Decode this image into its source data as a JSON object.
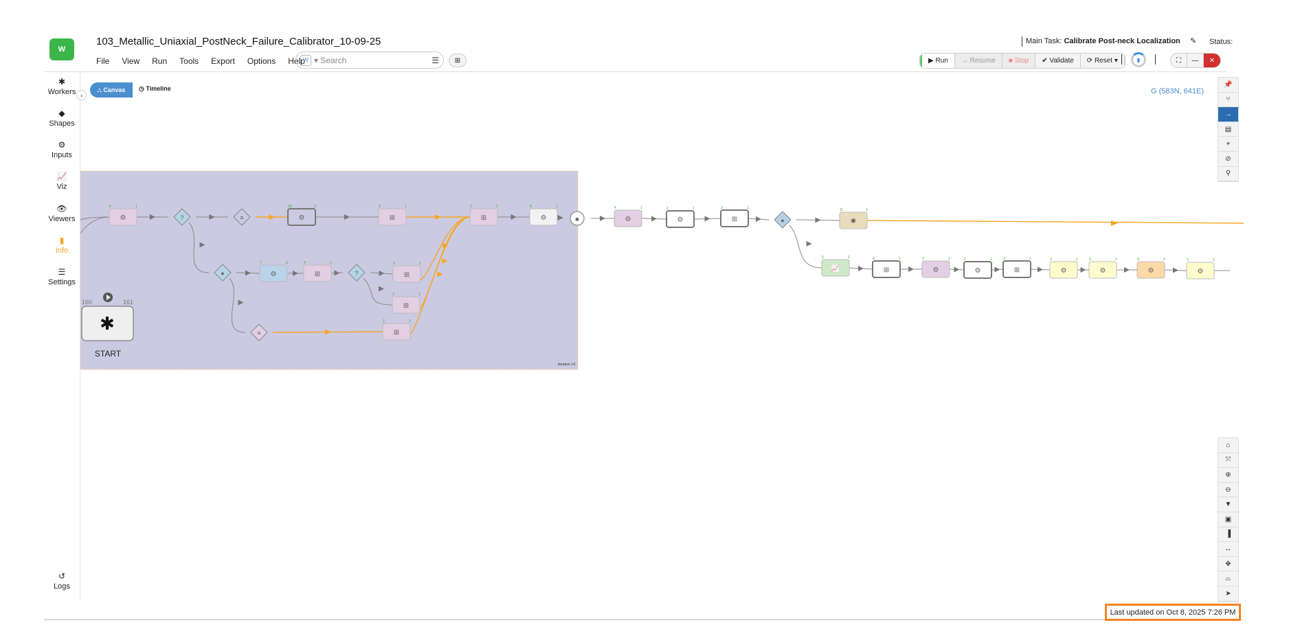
{
  "app": {
    "title": "103_Metallic_Uniaxial_PostNeck_Failure_Calibrator_10-09-25",
    "logo_text": "W"
  },
  "menu": [
    "File",
    "View",
    "Run",
    "Tools",
    "Export",
    "Options",
    "Help"
  ],
  "search": {
    "placeholder": "Search",
    "scope_badge": "W"
  },
  "header": {
    "main_task_label": "Main Task:",
    "main_task": "Calibrate Post-neck Localization",
    "status_label": "Status:"
  },
  "run_controls": {
    "run": "▶ Run",
    "resume": "→ Resume",
    "stop": "■ Stop",
    "validate": "✔ Validate",
    "reset": "⟳ Reset ▾"
  },
  "sidebar": [
    {
      "icon": "gear-icon",
      "glyph": "✱",
      "label": "Workers"
    },
    {
      "icon": "diamond-icon",
      "glyph": "◆",
      "label": "Shapes"
    },
    {
      "icon": "gears-icon",
      "glyph": "⚙",
      "label": "Inputs"
    },
    {
      "icon": "chart-icon",
      "glyph": "📈",
      "label": "Viz"
    },
    {
      "icon": "eye-icon",
      "glyph": "👁",
      "label": "Viewers"
    },
    {
      "icon": "file-icon",
      "glyph": "▮",
      "label": "Info",
      "active": true
    },
    {
      "icon": "sliders-icon",
      "glyph": "☰",
      "label": "Settings"
    },
    {
      "icon": "history-icon",
      "glyph": "↺",
      "label": "Logs"
    }
  ],
  "tabs": {
    "canvas": "Canvas",
    "timeline": "Timeline"
  },
  "coords": "G (583N, 641E)",
  "start": {
    "label": "START",
    "in": "160",
    "out": "161"
  },
  "group_label": "iteration 1/1",
  "right_toolbar_top": [
    {
      "icon": "pin-icon",
      "glyph": "📌"
    },
    {
      "icon": "branch-icon",
      "glyph": "⑂"
    },
    {
      "icon": "arrow-right-icon",
      "glyph": "→",
      "active": true
    },
    {
      "icon": "list-icon",
      "glyph": "▤"
    },
    {
      "icon": "crosshair-icon",
      "glyph": "⌖"
    },
    {
      "icon": "eye-slash-icon",
      "glyph": "⊘"
    },
    {
      "icon": "user-icon",
      "glyph": "⚲"
    }
  ],
  "right_toolbar_bottom": [
    {
      "icon": "home-icon",
      "glyph": "⌂"
    },
    {
      "icon": "compress-icon",
      "glyph": "⤧"
    },
    {
      "icon": "zoom-in-icon",
      "glyph": "⊕"
    },
    {
      "icon": "zoom-out-icon",
      "glyph": "⊖"
    },
    {
      "icon": "filter-icon",
      "glyph": "▼"
    },
    {
      "icon": "images-icon",
      "glyph": "▣"
    },
    {
      "icon": "bar-chart-icon",
      "glyph": "▐"
    },
    {
      "icon": "fit-width-icon",
      "glyph": "↔"
    },
    {
      "icon": "move-icon",
      "glyph": "✥"
    },
    {
      "icon": "basket-icon",
      "glyph": "⌓"
    },
    {
      "icon": "pointer-icon",
      "glyph": "➤"
    }
  ],
  "footer": {
    "updated": "Last updated on Oct 8, 2025 7:26 PM"
  },
  "colors": {
    "accent": "#4a8fce",
    "group_bg": "#cccae2",
    "highlight_edge": "#f5a623",
    "footer_border": "#f5821f"
  },
  "nodes": [
    {
      "kind": "box",
      "icon": "gear",
      "fill": "#e2cfe3",
      "in": "6",
      "out": "1"
    },
    {
      "kind": "diamond",
      "icon": "question",
      "fill": "#b6d4e6"
    },
    {
      "kind": "diamond",
      "icon": "db",
      "fill": "#cccae2"
    },
    {
      "kind": "box",
      "icon": "gear",
      "fill": "#cccae2",
      "in": "53",
      "out": "3",
      "bold": true
    },
    {
      "kind": "box",
      "icon": "table",
      "fill": "#e2cfe3",
      "in": "3",
      "out": "1"
    },
    {
      "kind": "box",
      "icon": "table",
      "fill": "#e2cfe3",
      "in": "2",
      "out": "1"
    },
    {
      "kind": "box",
      "icon": "gear",
      "fill": "#f2f2f2",
      "in": "8",
      "out": "1"
    },
    {
      "kind": "circle",
      "icon": "stop",
      "fill": "#ffffff"
    },
    {
      "kind": "box",
      "icon": "gear",
      "fill": "#e2cfe3",
      "in": "4",
      "out": "1"
    },
    {
      "kind": "box",
      "icon": "gear",
      "fill": "#ffffff",
      "in": "2",
      "out": "1",
      "bold": true
    },
    {
      "kind": "box",
      "icon": "table",
      "fill": "#ffffff",
      "in": "3",
      "out": "1",
      "bold": true
    },
    {
      "kind": "diamond",
      "icon": "dot",
      "fill": "#b6d0e8"
    },
    {
      "kind": "box",
      "icon": "asterisk",
      "fill": "#e8dcbc",
      "in": "11",
      "out": "1"
    },
    {
      "kind": "diamond",
      "icon": "dot",
      "fill": "#b6d4e6"
    },
    {
      "kind": "box",
      "icon": "gear",
      "fill": "#b9d3e8",
      "in": "7",
      "out": "3"
    },
    {
      "kind": "box",
      "icon": "table",
      "fill": "#e2cfe3",
      "in": "4",
      "out": "1"
    },
    {
      "kind": "diamond",
      "icon": "question",
      "fill": "#b6d4e6"
    },
    {
      "kind": "box",
      "icon": "table",
      "fill": "#e2cfe3",
      "in": "3",
      "out": "1"
    },
    {
      "kind": "box",
      "icon": "table",
      "fill": "#e2cfe3",
      "in": "3",
      "out": "1"
    },
    {
      "kind": "diamond",
      "icon": "db",
      "fill": "#e2cfe3"
    },
    {
      "kind": "box",
      "icon": "table",
      "fill": "#e2cfe3",
      "in": "2",
      "out": "1"
    },
    {
      "kind": "box",
      "icon": "chart",
      "fill": "#cfe8c8",
      "in": "5",
      "out": "1"
    },
    {
      "kind": "box",
      "icon": "table",
      "fill": "#ffffff",
      "in": "4",
      "out": "1",
      "bold": true
    },
    {
      "kind": "box",
      "icon": "gear",
      "fill": "#e2cfe3",
      "in": "2",
      "out": "1"
    },
    {
      "kind": "box",
      "icon": "gear",
      "fill": "#ffffff",
      "in": "2",
      "out": "1",
      "bold": true
    },
    {
      "kind": "box",
      "icon": "table",
      "fill": "#ffffff",
      "in": "3",
      "out": "1",
      "bold": true
    },
    {
      "kind": "box",
      "icon": "gear",
      "fill": "#fefccc",
      "in": "3",
      "out": "1"
    },
    {
      "kind": "box",
      "icon": "gear",
      "fill": "#fefccc",
      "in": "3",
      "out": "1"
    },
    {
      "kind": "box",
      "icon": "gear",
      "fill": "#fdd9a8",
      "in": "3",
      "out": "1"
    },
    {
      "kind": "box",
      "icon": "gear",
      "fill": "#fefccc",
      "in": "3",
      "out": "1"
    }
  ]
}
